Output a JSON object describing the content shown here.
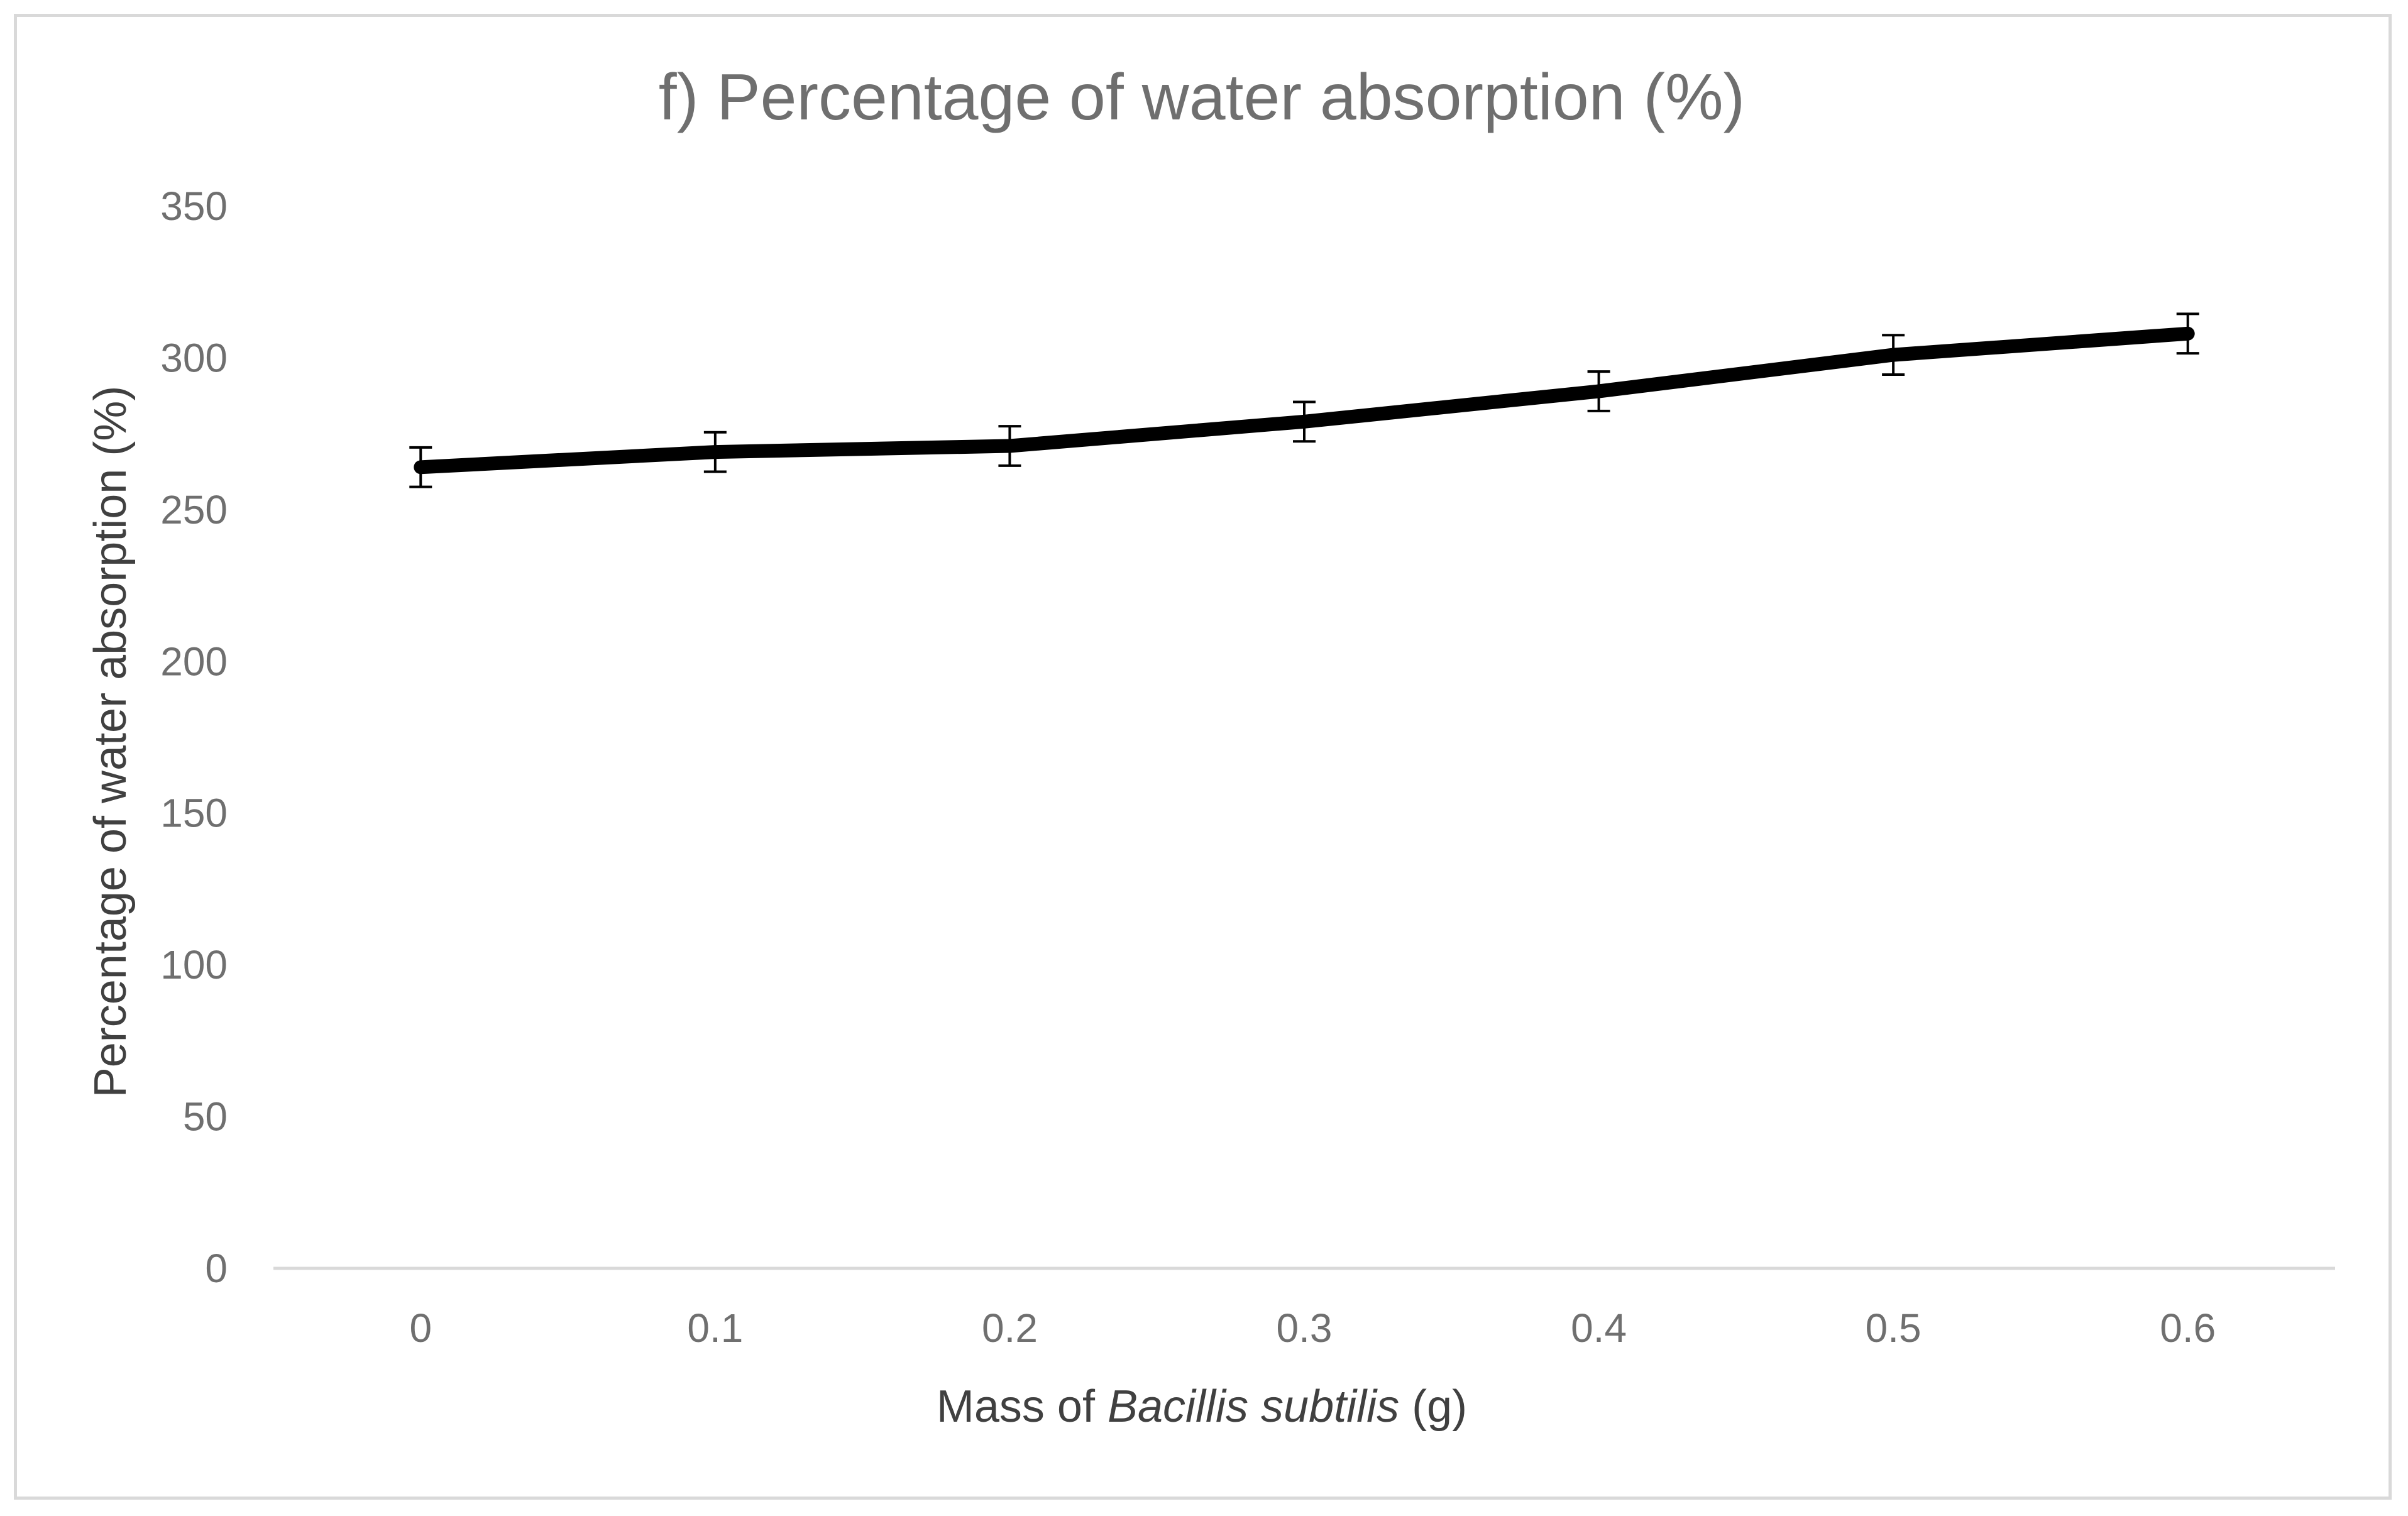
{
  "chart_data": {
    "type": "line",
    "title": "f) Percentage of water absorption (%)",
    "xlabel_parts": [
      "Mass of ",
      "Bacillis subtilis",
      " (g)"
    ],
    "ylabel": "Percentage of water absorption (%)",
    "categories": [
      "0",
      "0.1",
      "0.2",
      "0.3",
      "0.4",
      "0.5",
      "0.6"
    ],
    "series": [
      {
        "name": "Percentage of water absorption (%)",
        "values": [
          264,
          269,
          271,
          279,
          289,
          301,
          308
        ],
        "error": [
          6.5,
          6.5,
          6.5,
          6.5,
          6.5,
          6.5,
          6.5
        ]
      }
    ],
    "ylim": [
      0,
      350
    ],
    "yticks": [
      0,
      50,
      100,
      150,
      200,
      250,
      300,
      350
    ],
    "grid": false,
    "legend": "none",
    "line_color": "#000000"
  }
}
